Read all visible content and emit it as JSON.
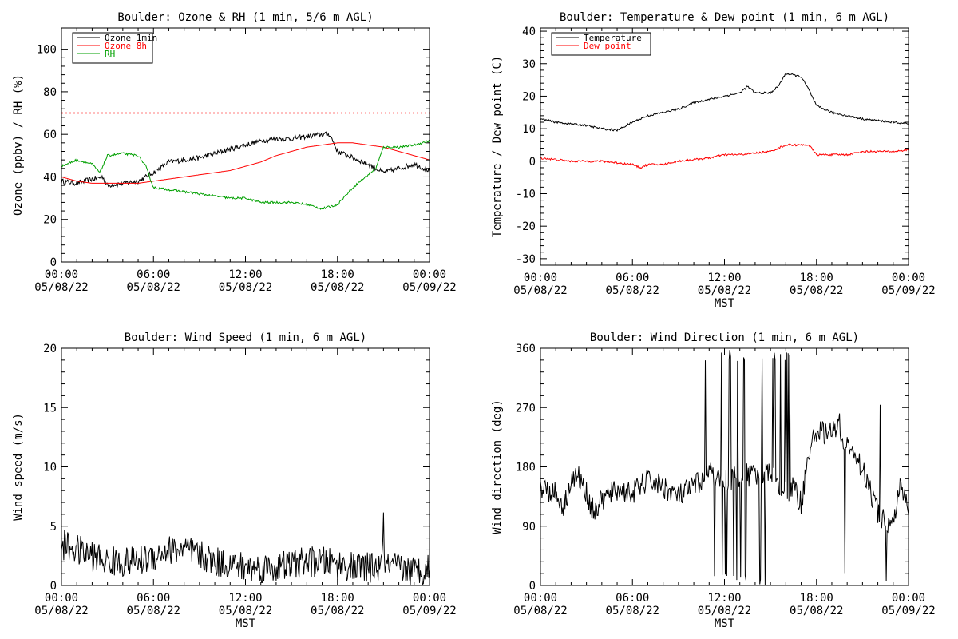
{
  "chart_data": [
    {
      "type": "line",
      "title": "Boulder: Ozone & RH (1 min, 5/6 m AGL)",
      "xlabel": "",
      "ylabel": "Ozone (ppbv) / RH (%)",
      "xlim": [
        0,
        24
      ],
      "ylim": [
        0,
        110
      ],
      "x_ticks": [
        {
          "time": "00:00",
          "date": "05/08/22"
        },
        {
          "time": "06:00",
          "date": "05/08/22"
        },
        {
          "time": "12:00",
          "date": "05/08/22"
        },
        {
          "time": "18:00",
          "date": "05/08/22"
        },
        {
          "time": "00:00",
          "date": "05/09/22"
        }
      ],
      "y_ticks": [
        0,
        20,
        40,
        60,
        80,
        100
      ],
      "legend": "top-left",
      "reference_line": {
        "y": 70,
        "color": "#ff0000",
        "style": "dotted"
      },
      "series": [
        {
          "name": "Ozone 1min",
          "color": "#000000",
          "noise": 1.2,
          "x": [
            0,
            1,
            2,
            2.7,
            3,
            4,
            5,
            6,
            7,
            8,
            9,
            10,
            11,
            12,
            13,
            14,
            15,
            16,
            17,
            17.5,
            18,
            19,
            20,
            21,
            22,
            23,
            24
          ],
          "y": [
            38,
            37,
            39,
            40,
            36,
            37,
            38,
            42,
            47,
            48,
            49,
            51,
            53,
            55,
            57,
            58,
            58,
            59,
            60,
            60,
            52,
            49,
            46,
            42,
            44,
            46,
            43
          ]
        },
        {
          "name": "Ozone 8h",
          "color": "#ff0000",
          "noise": 0,
          "x": [
            0,
            1,
            2,
            3,
            4,
            5,
            6,
            7,
            8,
            9,
            10,
            11,
            12,
            13,
            14,
            15,
            16,
            17,
            18,
            19,
            20,
            21,
            22,
            23,
            24
          ],
          "y": [
            40,
            38,
            37,
            37,
            37,
            37,
            38,
            39,
            40,
            41,
            42,
            43,
            45,
            47,
            50,
            52,
            54,
            55,
            56,
            56,
            55,
            54,
            52,
            50,
            48
          ]
        },
        {
          "name": "RH",
          "color": "#00a000",
          "noise": 0.5,
          "x": [
            0,
            1,
            2,
            2.5,
            3,
            4,
            5,
            5.5,
            6,
            7,
            8,
            9,
            10,
            11,
            12,
            13,
            14,
            15,
            16,
            17,
            18,
            19,
            20,
            20.5,
            21,
            22,
            23,
            24
          ],
          "y": [
            45,
            48,
            46,
            42,
            50,
            51,
            50,
            45,
            35,
            34,
            33,
            32,
            31,
            30,
            30,
            28,
            28,
            28,
            27,
            25,
            27,
            35,
            41,
            44,
            54,
            54,
            55,
            57
          ]
        }
      ]
    },
    {
      "type": "line",
      "title": "Boulder: Temperature & Dew point (1 min, 6 m AGL)",
      "xlabel": "MST",
      "ylabel": "Temperature / Dew point (C)",
      "xlim": [
        0,
        24
      ],
      "ylim": [
        -32,
        41
      ],
      "x_ticks": [
        {
          "time": "00:00",
          "date": "05/08/22"
        },
        {
          "time": "06:00",
          "date": "05/08/22"
        },
        {
          "time": "12:00",
          "date": "05/08/22"
        },
        {
          "time": "18:00",
          "date": "05/08/22"
        },
        {
          "time": "00:00",
          "date": "05/09/22"
        }
      ],
      "y_ticks": [
        -30,
        -20,
        -10,
        0,
        10,
        20,
        30,
        40
      ],
      "legend": "top-left",
      "series": [
        {
          "name": "Temperature",
          "color": "#000000",
          "noise": 0.3,
          "x": [
            0,
            1,
            2,
            3,
            4,
            5,
            6,
            7,
            8,
            9,
            10,
            11,
            12,
            13,
            13.5,
            14,
            15,
            15.5,
            16,
            17,
            17.5,
            18,
            19,
            20,
            21,
            22,
            23,
            24
          ],
          "y": [
            13,
            12,
            11.5,
            11,
            10,
            9.5,
            12,
            14,
            15,
            16,
            18,
            19,
            20,
            21,
            23,
            21,
            21,
            23,
            27,
            26,
            22,
            17,
            15,
            14,
            13,
            12.5,
            12,
            11.5
          ]
        },
        {
          "name": "Dew point",
          "color": "#ff0000",
          "noise": 0.3,
          "x": [
            0,
            1,
            2,
            3,
            4,
            5,
            6,
            6.5,
            7,
            8,
            9,
            10,
            11,
            12,
            13,
            14,
            15,
            16,
            17,
            17.5,
            18,
            19,
            20,
            21,
            22,
            23,
            24
          ],
          "y": [
            1,
            0.5,
            0,
            0,
            0,
            -0.5,
            -1,
            -2,
            -1,
            -1,
            0,
            0.5,
            1,
            2,
            2,
            2.5,
            3,
            5,
            5,
            5,
            2,
            2,
            2,
            3,
            3,
            3,
            3.5
          ]
        }
      ]
    },
    {
      "type": "line",
      "title": "Boulder: Wind Speed (1 min, 6 m AGL)",
      "xlabel": "MST",
      "ylabel": "Wind speed (m/s)",
      "xlim": [
        0,
        24
      ],
      "ylim": [
        0,
        20
      ],
      "x_ticks": [
        {
          "time": "00:00",
          "date": "05/08/22"
        },
        {
          "time": "06:00",
          "date": "05/08/22"
        },
        {
          "time": "12:00",
          "date": "05/08/22"
        },
        {
          "time": "18:00",
          "date": "05/08/22"
        },
        {
          "time": "00:00",
          "date": "05/09/22"
        }
      ],
      "y_ticks": [
        0,
        5,
        10,
        15,
        20
      ],
      "series": [
        {
          "color": "#000000",
          "noise": 1.3,
          "x": [
            0,
            1,
            2,
            3,
            4,
            5,
            6,
            7,
            8,
            9,
            10,
            11,
            12,
            13,
            14,
            15,
            16,
            17,
            18,
            19,
            20,
            20.9,
            21,
            21.1,
            22,
            23,
            24
          ],
          "y": [
            3.5,
            3,
            2.5,
            2,
            2,
            2,
            2.5,
            3,
            3,
            2.5,
            2,
            1.8,
            1.5,
            1.5,
            1.5,
            1.8,
            2,
            2,
            1.8,
            1.5,
            1.5,
            1.5,
            6,
            1.5,
            1.5,
            1.2,
            1.5
          ]
        }
      ]
    },
    {
      "type": "line",
      "title": "Boulder: Wind Direction (1 min, 6 m AGL)",
      "xlabel": "MST",
      "ylabel": "Wind direction (deg)",
      "xlim": [
        0,
        24
      ],
      "ylim": [
        0,
        360
      ],
      "x_ticks": [
        {
          "time": "00:00",
          "date": "05/08/22"
        },
        {
          "time": "06:00",
          "date": "05/08/22"
        },
        {
          "time": "12:00",
          "date": "05/08/22"
        },
        {
          "time": "18:00",
          "date": "05/08/22"
        },
        {
          "time": "00:00",
          "date": "05/09/22"
        }
      ],
      "y_ticks": [
        0,
        90,
        180,
        270,
        360
      ],
      "series": [
        {
          "color": "#000000",
          "noise": 18,
          "spikes": [
            [
              10.5,
              16.5,
              0.25,
              0,
              360
            ],
            [
              19.5,
              23.2,
              0.08,
              0,
              280
            ]
          ],
          "x": [
            0,
            1,
            1.5,
            2,
            2.5,
            3,
            3.5,
            4,
            5,
            6,
            7,
            8,
            9,
            10,
            11,
            12,
            13,
            14,
            15,
            16,
            16.5,
            17,
            17.5,
            18,
            19,
            19.5,
            20,
            21,
            22,
            23,
            23.5,
            24
          ],
          "y": [
            150,
            140,
            120,
            160,
            165,
            140,
            110,
            130,
            145,
            140,
            160,
            150,
            135,
            150,
            170,
            160,
            165,
            170,
            170,
            140,
            150,
            125,
            200,
            235,
            230,
            240,
            210,
            180,
            110,
            90,
            150,
            120
          ]
        }
      ]
    }
  ]
}
